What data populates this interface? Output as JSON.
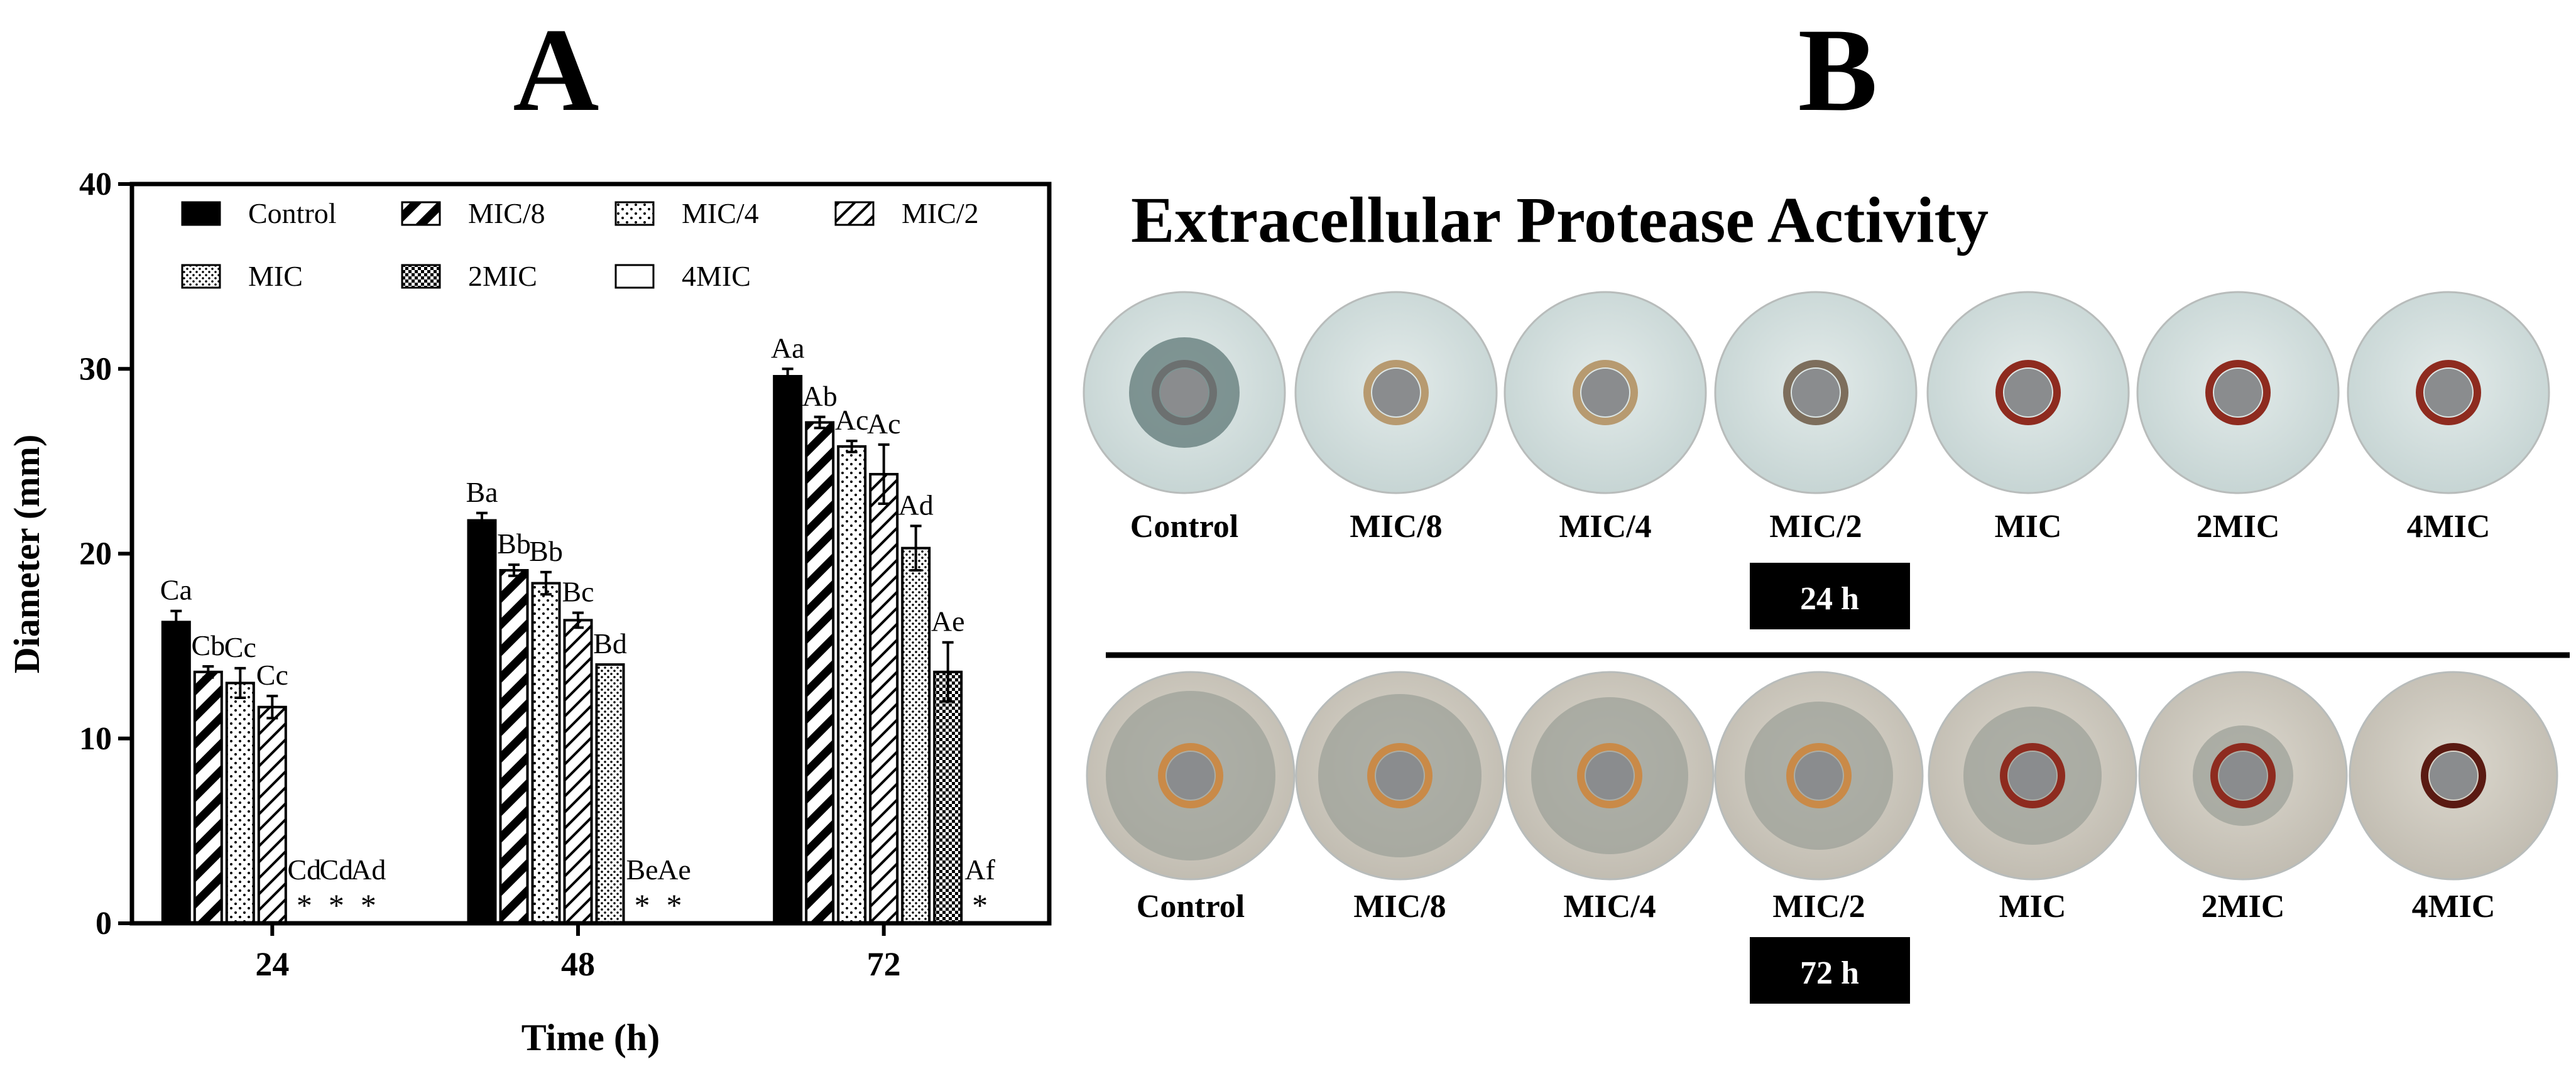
{
  "panels": {
    "a": "A",
    "b": "B"
  },
  "chart_data": {
    "type": "bar",
    "xlabel": "Time (h)",
    "ylabel": "Diameter (mm)",
    "categories": [
      "24",
      "48",
      "72"
    ],
    "ylim": [
      0,
      40
    ],
    "yticks": [
      0,
      10,
      20,
      30,
      40
    ],
    "grid": false,
    "legend_position": "top",
    "series": [
      {
        "name": "Control",
        "pattern": "solid",
        "values": [
          16.3,
          21.8,
          29.6
        ],
        "errors": [
          0.6,
          0.4,
          0.4
        ],
        "labels": [
          "Ca",
          "Ba",
          "Aa"
        ]
      },
      {
        "name": "MIC/8",
        "pattern": "thick-diagonal",
        "values": [
          13.6,
          19.1,
          27.1
        ],
        "errors": [
          0.3,
          0.3,
          0.3
        ],
        "labels": [
          "Cb",
          "Bb",
          "Ab"
        ]
      },
      {
        "name": "MIC/4",
        "pattern": "dots",
        "values": [
          13.0,
          18.4,
          25.8
        ],
        "errors": [
          0.8,
          0.6,
          0.3
        ],
        "labels": [
          "Cc",
          "Bb",
          "Ac"
        ]
      },
      {
        "name": "MIC/2",
        "pattern": "thin-diagonal",
        "values": [
          11.7,
          16.4,
          24.3
        ],
        "errors": [
          0.6,
          0.4,
          1.6
        ],
        "labels": [
          "Cc",
          "Bc",
          "Ac"
        ]
      },
      {
        "name": "MIC",
        "pattern": "dense-dots",
        "values": [
          0,
          14.0,
          20.3
        ],
        "errors": [
          0,
          0,
          1.2
        ],
        "labels": [
          "Cd",
          "Bd",
          "Ad"
        ]
      },
      {
        "name": "2MIC",
        "pattern": "checker",
        "values": [
          0,
          0,
          13.6
        ],
        "errors": [
          0,
          0,
          1.6
        ],
        "labels": [
          "Cd",
          "Be",
          "Ae"
        ]
      },
      {
        "name": "4MIC",
        "pattern": "open",
        "values": [
          0,
          0,
          0
        ],
        "errors": [
          0,
          0,
          0
        ],
        "labels": [
          "Ad",
          "Ae",
          "Af"
        ]
      }
    ],
    "zero_marker": "*"
  },
  "plates": {
    "title": "Extracellular Protease Activity",
    "labels": [
      "Control",
      "MIC/8",
      "MIC/4",
      "MIC/2",
      "MIC",
      "2MIC",
      "4MIC"
    ],
    "time_24": "24 h",
    "time_72": "72 h",
    "colors": {
      "row1_plate": "#cfdcda",
      "row1_zone": "#5f7877",
      "row2_plate": "#cdc8bd",
      "row2_zone": "#9ea19a",
      "ring_orange": "#c98a48",
      "ring_red": "#8e2b1f",
      "well": "#8a8c8e"
    }
  }
}
